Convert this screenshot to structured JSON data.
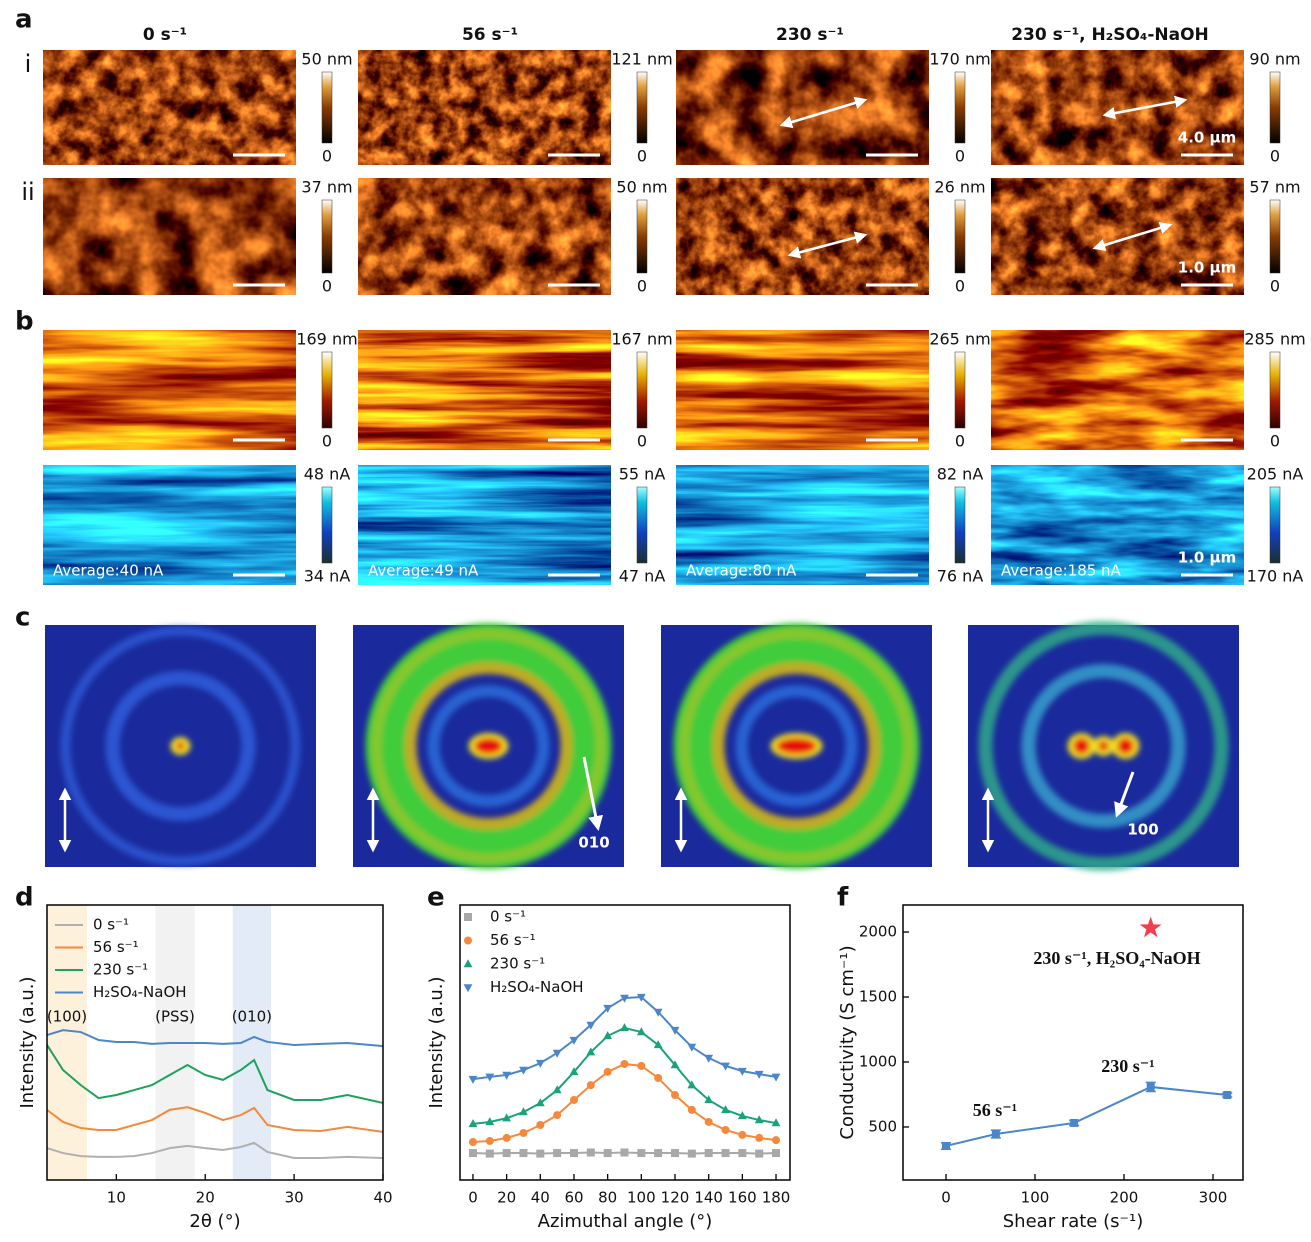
{
  "panel_labels": [
    "a",
    "b",
    "c",
    "d",
    "e",
    "f"
  ],
  "column_titles": [
    "0 s⁻¹",
    "56 s⁻¹",
    "230 s⁻¹",
    "230 s⁻¹, H₂SO₄-NaOH"
  ],
  "image_rows": [
    {
      "label": "i",
      "colormap": "afm",
      "colorbars": [
        [
          "50 nm",
          "0"
        ],
        [
          "121 nm",
          "0"
        ],
        [
          "170 nm",
          "0"
        ],
        [
          "90 nm",
          "0"
        ]
      ],
      "scale_bar_label": "4.0 μm"
    },
    {
      "label": "ii",
      "colormap": "afm",
      "colorbars": [
        [
          "37 nm",
          "0"
        ],
        [
          "50 nm",
          "0"
        ],
        [
          "26 nm",
          "0"
        ],
        [
          "57 nm",
          "0"
        ]
      ],
      "scale_bar_label": "1.0 μm"
    },
    {
      "colormap": "topo",
      "colorbars": [
        [
          "169 nm",
          "0"
        ],
        [
          "167 nm",
          "0"
        ],
        [
          "265 nm",
          "0"
        ],
        [
          "285 nm",
          "0"
        ]
      ]
    },
    {
      "colormap": "current",
      "colorbars": [
        [
          "48 nA",
          "34 nA"
        ],
        [
          "55 nA",
          "47 nA"
        ],
        [
          "82 nA",
          "76 nA"
        ],
        [
          "205 nA",
          "170 nA"
        ]
      ],
      "averages": [
        "Average:40 nA",
        "Average:49 nA",
        "Average:80 nA",
        "Average:185 nA"
      ],
      "scale_bar_label": "1.0 μm"
    }
  ],
  "giwaxs": {
    "arrow_labels": [
      "010",
      "100"
    ]
  },
  "chart_data": [
    {
      "type": "line",
      "xlabel": "2θ (°)",
      "ylabel": "Intensity (a.u.)",
      "legend": "upper left",
      "x": [
        2.2,
        4,
        6,
        8,
        10,
        12,
        14,
        16,
        18,
        20,
        22,
        24,
        25.5,
        27,
        30,
        33,
        36,
        40
      ],
      "xlim": [
        2.2,
        40
      ],
      "xticks": [
        10,
        20,
        30,
        40
      ],
      "ylim": [
        0,
        10
      ],
      "bands": [
        {
          "range": [
            2.2,
            6.7
          ],
          "label": "(100)",
          "color": "#fdf1dc"
        },
        {
          "range": [
            14.4,
            18.8
          ],
          "label": "(PSS)",
          "color": "#f2f2f2"
        },
        {
          "range": [
            23.1,
            27.4
          ],
          "label": "(010)",
          "color": "#e3ebf6"
        }
      ],
      "series": [
        {
          "name": "0 s⁻¹",
          "color": "#b0b0b0",
          "values": [
            1.16,
            0.98,
            0.87,
            0.84,
            0.84,
            0.87,
            0.98,
            1.16,
            1.24,
            1.16,
            1.09,
            1.2,
            1.35,
            1.02,
            0.8,
            0.8,
            0.84,
            0.8
          ]
        },
        {
          "name": "56 s⁻¹",
          "color": "#f5883a",
          "values": [
            2.55,
            2.11,
            1.89,
            1.82,
            1.82,
            2.0,
            2.18,
            2.55,
            2.65,
            2.44,
            2.18,
            2.36,
            2.62,
            2.0,
            1.82,
            1.78,
            1.93,
            1.75
          ]
        },
        {
          "name": "230 s⁻¹",
          "color": "#1aa35a",
          "values": [
            4.91,
            4.0,
            3.45,
            2.98,
            3.09,
            3.27,
            3.45,
            3.82,
            4.18,
            3.82,
            3.64,
            4.0,
            4.36,
            3.27,
            2.91,
            2.91,
            3.09,
            2.8
          ]
        },
        {
          "name": "H₂SO₄-NaOH",
          "color": "#4a86c8",
          "values": [
            5.27,
            5.45,
            5.38,
            5.09,
            5.02,
            5.02,
            4.95,
            4.98,
            4.98,
            4.98,
            4.95,
            4.98,
            5.2,
            5.02,
            4.91,
            4.95,
            4.98,
            4.87
          ]
        }
      ]
    },
    {
      "type": "line",
      "xlabel": "Azimuthal angle (°)",
      "ylabel": "Intensity (a.u.)",
      "legend": "upper left",
      "x": [
        0,
        10,
        20,
        30,
        40,
        50,
        60,
        70,
        80,
        90,
        100,
        110,
        120,
        130,
        140,
        150,
        160,
        170,
        180
      ],
      "xlim": [
        -7.7,
        188.3
      ],
      "xticks": [
        0,
        20,
        40,
        60,
        80,
        100,
        120,
        140,
        160,
        180
      ],
      "ylim": [
        0,
        10
      ],
      "series": [
        {
          "name": "0 s⁻¹",
          "color": "#a8a8a8",
          "marker": "square",
          "values": [
            0.98,
            0.96,
            0.98,
            0.98,
            0.96,
            0.98,
            0.98,
            1.0,
            0.98,
            1.0,
            0.98,
            0.98,
            0.98,
            0.96,
            0.98,
            0.98,
            0.98,
            0.96,
            0.98
          ]
        },
        {
          "name": "56 s⁻¹",
          "color": "#f5883a",
          "marker": "circle",
          "values": [
            1.38,
            1.42,
            1.53,
            1.71,
            2.0,
            2.36,
            2.91,
            3.45,
            3.93,
            4.22,
            4.15,
            3.71,
            3.09,
            2.55,
            2.11,
            1.82,
            1.64,
            1.53,
            1.45
          ]
        },
        {
          "name": "230 s⁻¹",
          "color": "#1aa37a",
          "marker": "triangle-up",
          "values": [
            2.04,
            2.11,
            2.25,
            2.47,
            2.8,
            3.27,
            3.93,
            4.65,
            5.24,
            5.53,
            5.38,
            4.91,
            4.18,
            3.45,
            2.91,
            2.55,
            2.33,
            2.18,
            2.07
          ]
        },
        {
          "name": "H₂SO₄-NaOH",
          "color": "#4a86c8",
          "marker": "triangle-down",
          "values": [
            3.67,
            3.75,
            3.82,
            4.0,
            4.25,
            4.62,
            5.09,
            5.64,
            6.25,
            6.62,
            6.65,
            6.11,
            5.45,
            4.84,
            4.44,
            4.15,
            3.96,
            3.85,
            3.75
          ]
        }
      ]
    },
    {
      "type": "line",
      "xlabel": "Shear rate (s⁻¹)",
      "ylabel": "Conductivity (S cm⁻¹)",
      "xlim": [
        -48.3,
        333.7
      ],
      "xticks": [
        0,
        100,
        200,
        300
      ],
      "ylim": [
        92,
        2208
      ],
      "yticks": [
        500,
        1000,
        1500,
        2000
      ],
      "annotations": [
        "56 s⁻¹",
        "230 s⁻¹",
        "230 s⁻¹, H₂SO₄-NaOH"
      ],
      "series": [
        {
          "color": "#4a86c8",
          "marker": "square",
          "x": [
            0,
            56,
            144,
            230,
            316
          ],
          "values": [
            354,
            446,
            531,
            808,
            746
          ],
          "errors": [
            25,
            30,
            20,
            35,
            15
          ]
        },
        {
          "color": "#f04050",
          "marker": "star",
          "line": false,
          "x": [
            230
          ],
          "values": [
            2031
          ]
        }
      ]
    }
  ]
}
